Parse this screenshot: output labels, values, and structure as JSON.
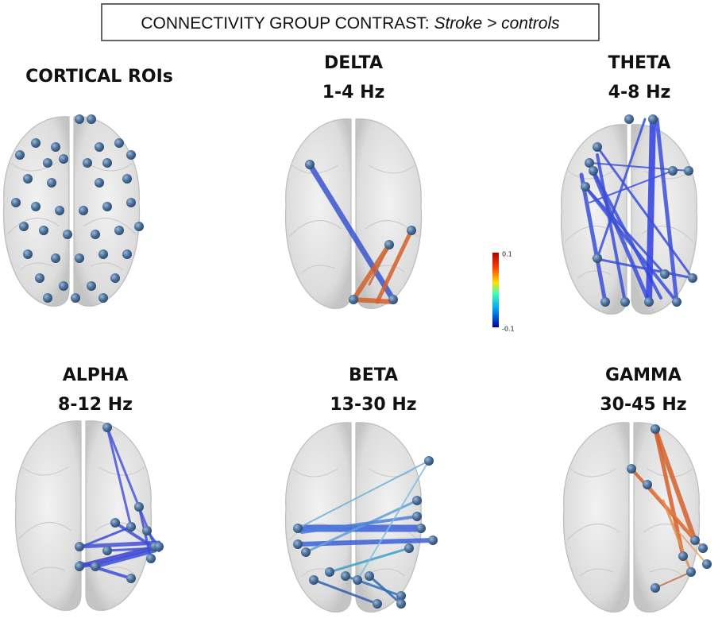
{
  "title": {
    "prefix": "CONNECTIVITY GROUP CONTRAST:",
    "emphasis": "Stroke > controls"
  },
  "panels": [
    {
      "lines": [
        "CORTICAL ROIs"
      ]
    },
    {
      "lines": [
        "DELTA",
        "1-4 Hz"
      ]
    },
    {
      "lines": [
        "THETA",
        "4-8 Hz"
      ]
    },
    {
      "lines": [
        "ALPHA",
        "8-12 Hz"
      ]
    },
    {
      "lines": [
        "BETA",
        "13-30 Hz"
      ]
    },
    {
      "lines": [
        "GAMMA",
        "30-45 Hz"
      ]
    }
  ],
  "colorbar": {
    "max": 0.1,
    "min": -0.1
  }
}
